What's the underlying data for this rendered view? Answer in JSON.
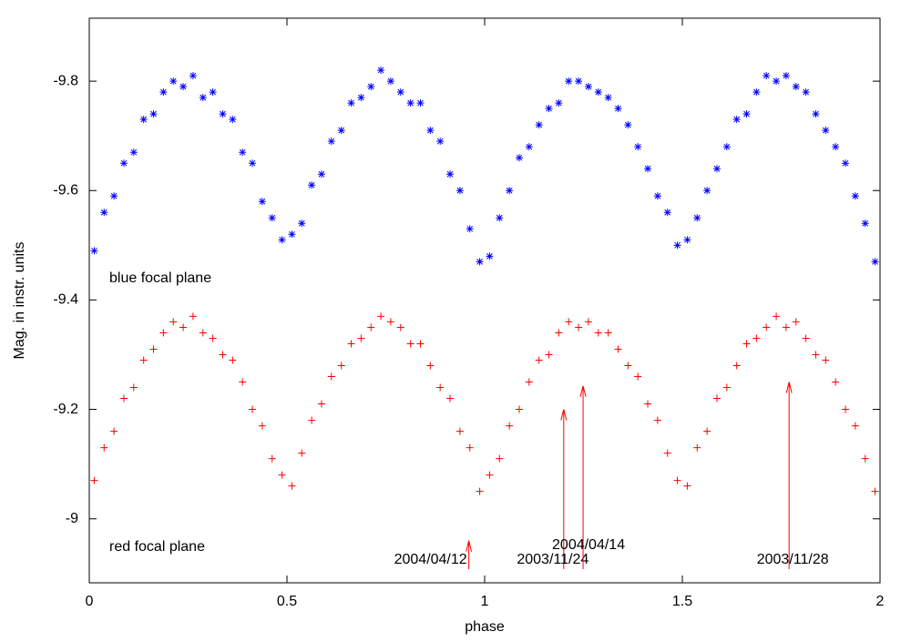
{
  "chart_data": {
    "type": "scatter",
    "xlabel": "phase",
    "ylabel": "Mag. in instr. units",
    "xlim": [
      0,
      2
    ],
    "ylim": [
      -8.883,
      -9.915
    ],
    "xticks": [
      0,
      0.5,
      1,
      1.5,
      2
    ],
    "yticks": [
      -9,
      -9.2,
      -9.4,
      -9.6,
      -9.8
    ],
    "grid": false,
    "series_labels": [
      "blue focal plane",
      "red focal plane"
    ],
    "series": [
      {
        "color": "#0000ff",
        "marker": "star",
        "x": [
          0.0125,
          0.0375,
          0.0625,
          0.0875,
          0.1125,
          0.1375,
          0.1625,
          0.1875,
          0.2125,
          0.2375,
          0.2625,
          0.2875,
          0.3125,
          0.3375,
          0.3625,
          0.3875,
          0.4125,
          0.4375,
          0.4625,
          0.4875,
          0.5125,
          0.5375,
          0.5625,
          0.5875,
          0.6125,
          0.6375,
          0.6625,
          0.6875,
          0.7125,
          0.7375,
          0.7625,
          0.7875,
          0.8125,
          0.8375,
          0.8625,
          0.8875,
          0.9125,
          0.9375,
          0.9625,
          0.9875,
          1.0125,
          1.0375,
          1.0625,
          1.0875,
          1.1125,
          1.1375,
          1.1625,
          1.1875,
          1.2125,
          1.2375,
          1.2625,
          1.2875,
          1.3125,
          1.3375,
          1.3625,
          1.3875,
          1.4125,
          1.4375,
          1.4625,
          1.4875,
          1.5125,
          1.5375,
          1.5625,
          1.5875,
          1.6125,
          1.6375,
          1.6625,
          1.6875,
          1.7125,
          1.7375,
          1.7625,
          1.7875,
          1.8125,
          1.8375,
          1.8625,
          1.8875,
          1.9125,
          1.9375,
          1.9625,
          1.9875
        ],
        "values": [
          -9.49,
          -9.56,
          -9.59,
          -9.65,
          -9.67,
          -9.73,
          -9.74,
          -9.78,
          -9.8,
          -9.79,
          -9.81,
          -9.77,
          -9.78,
          -9.74,
          -9.73,
          -9.67,
          -9.65,
          -9.58,
          -9.55,
          -9.51,
          -9.52,
          -9.54,
          -9.61,
          -9.63,
          -9.69,
          -9.71,
          -9.76,
          -9.77,
          -9.79,
          -9.82,
          -9.8,
          -9.78,
          -9.76,
          -9.76,
          -9.71,
          -9.69,
          -9.63,
          -9.6,
          -9.53,
          -9.47,
          -9.48,
          -9.55,
          -9.6,
          -9.66,
          -9.68,
          -9.72,
          -9.75,
          -9.76,
          -9.8,
          -9.8,
          -9.79,
          -9.78,
          -9.77,
          -9.75,
          -9.72,
          -9.68,
          -9.64,
          -9.59,
          -9.56,
          -9.5,
          -9.51,
          -9.55,
          -9.6,
          -9.64,
          -9.68,
          -9.73,
          -9.74,
          -9.78,
          -9.81,
          -9.8,
          -9.81,
          -9.79,
          -9.78,
          -9.74,
          -9.71,
          -9.68,
          -9.65,
          -9.59,
          -9.54,
          -9.47
        ]
      },
      {
        "color": "#ff0000",
        "marker": "plus",
        "x": [
          0.0125,
          0.0375,
          0.0625,
          0.0875,
          0.1125,
          0.1375,
          0.1625,
          0.1875,
          0.2125,
          0.2375,
          0.2625,
          0.2875,
          0.3125,
          0.3375,
          0.3625,
          0.3875,
          0.4125,
          0.4375,
          0.4625,
          0.4875,
          0.5125,
          0.5375,
          0.5625,
          0.5875,
          0.6125,
          0.6375,
          0.6625,
          0.6875,
          0.7125,
          0.7375,
          0.7625,
          0.7875,
          0.8125,
          0.8375,
          0.8625,
          0.8875,
          0.9125,
          0.9375,
          0.9625,
          0.9875,
          1.0125,
          1.0375,
          1.0625,
          1.0875,
          1.1125,
          1.1375,
          1.1625,
          1.1875,
          1.2125,
          1.2375,
          1.2625,
          1.2875,
          1.3125,
          1.3375,
          1.3625,
          1.3875,
          1.4125,
          1.4375,
          1.4625,
          1.4875,
          1.5125,
          1.5375,
          1.5625,
          1.5875,
          1.6125,
          1.6375,
          1.6625,
          1.6875,
          1.7125,
          1.7375,
          1.7625,
          1.7875,
          1.8125,
          1.8375,
          1.8625,
          1.8875,
          1.9125,
          1.9375,
          1.9625,
          1.9875
        ],
        "values": [
          -9.07,
          -9.13,
          -9.16,
          -9.22,
          -9.24,
          -9.29,
          -9.31,
          -9.34,
          -9.36,
          -9.35,
          -9.37,
          -9.34,
          -9.33,
          -9.3,
          -9.29,
          -9.25,
          -9.2,
          -9.17,
          -9.11,
          -9.08,
          -9.06,
          -9.12,
          -9.18,
          -9.21,
          -9.26,
          -9.28,
          -9.32,
          -9.33,
          -9.35,
          -9.37,
          -9.36,
          -9.35,
          -9.32,
          -9.32,
          -9.28,
          -9.24,
          -9.22,
          -9.16,
          -9.13,
          -9.05,
          -9.08,
          -9.11,
          -9.17,
          -9.2,
          -9.25,
          -9.29,
          -9.3,
          -9.34,
          -9.36,
          -9.35,
          -9.36,
          -9.34,
          -9.34,
          -9.31,
          -9.28,
          -9.26,
          -9.21,
          -9.18,
          -9.12,
          -9.07,
          -9.06,
          -9.13,
          -9.16,
          -9.22,
          -9.24,
          -9.28,
          -9.32,
          -9.33,
          -9.35,
          -9.37,
          -9.35,
          -9.36,
          -9.33,
          -9.3,
          -9.29,
          -9.25,
          -9.2,
          -9.17,
          -9.11,
          -9.05
        ]
      }
    ],
    "annotations": [
      {
        "text": "2004/04/12",
        "x": 0.96,
        "y": -8.96
      },
      {
        "text": "2003/11/24",
        "x": 1.2,
        "y": -9.2
      },
      {
        "text": "2004/04/14",
        "x": 1.249,
        "y": -9.243
      },
      {
        "text": "2003/11/28",
        "x": 1.77,
        "y": -9.25
      }
    ]
  }
}
